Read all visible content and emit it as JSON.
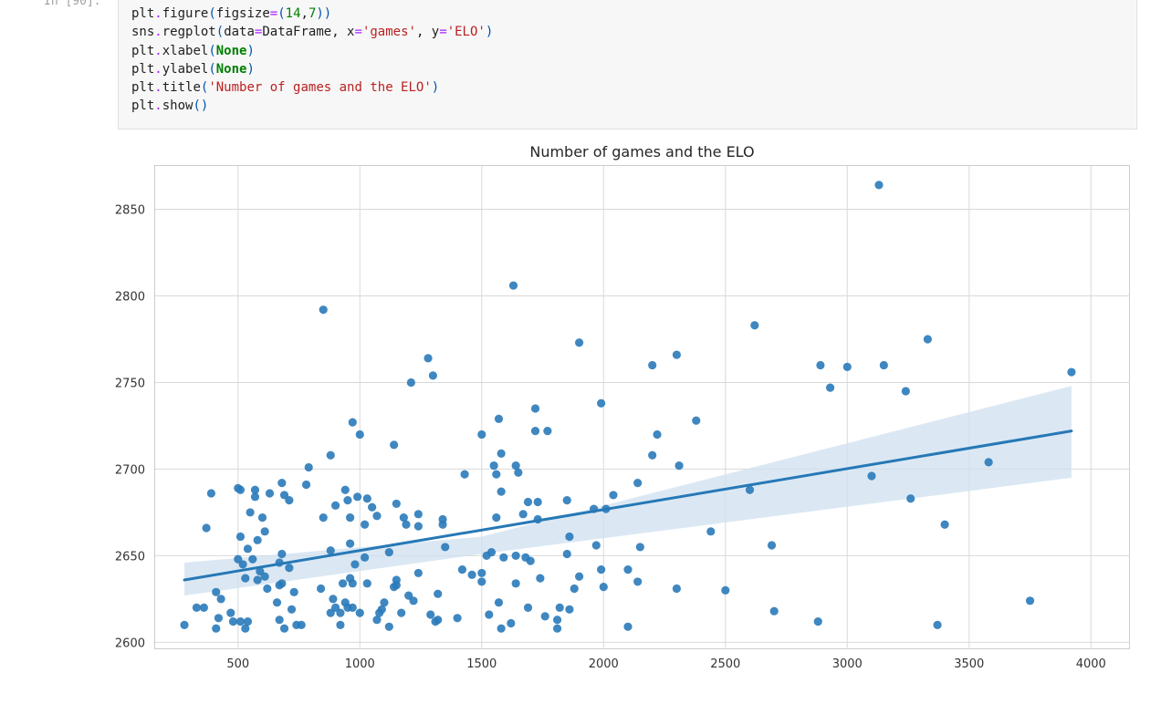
{
  "cell": {
    "prompt": "In [90]:",
    "lines": [
      "plt.figure(figsize=(14,7))",
      "sns.regplot(data=DataFrame, x='games', y='ELO')",
      "plt.xlabel(None)",
      "plt.ylabel(None)",
      "plt.title('Number of games and the ELO')",
      "plt.show()"
    ]
  },
  "colors": {
    "points": "#2a7ab9",
    "line": "#2678b6",
    "band": "#cfe0f0",
    "grid": "#d9d9d9",
    "cell_bg": "#f7f7f7"
  },
  "chart_data": {
    "type": "scatter",
    "title": "Number of games and the ELO",
    "xlabel": "",
    "ylabel": "",
    "xlim": [
      160,
      4160
    ],
    "ylim": [
      2596,
      2875
    ],
    "xticks": [
      500,
      1000,
      1500,
      2000,
      2500,
      3000,
      3500,
      4000
    ],
    "yticks": [
      2600,
      2650,
      2700,
      2750,
      2800,
      2850
    ],
    "grid": true,
    "regression": {
      "x_range": [
        280,
        3920
      ],
      "y_start": 2636,
      "y_end": 2722,
      "ci_start": [
        2627,
        2646
      ],
      "ci_end": [
        2695,
        2748
      ],
      "ci_at_mean": [
        2651,
        2661
      ],
      "x_mean": 1500
    },
    "points": [
      [
        3130,
        2864
      ],
      [
        1630,
        2806
      ],
      [
        850,
        2792
      ],
      [
        2620,
        2783
      ],
      [
        1900,
        2773
      ],
      [
        3330,
        2775
      ],
      [
        1280,
        2764
      ],
      [
        2300,
        2766
      ],
      [
        2200,
        2760
      ],
      [
        2890,
        2760
      ],
      [
        3000,
        2759
      ],
      [
        3150,
        2760
      ],
      [
        3920,
        2756
      ],
      [
        1300,
        2754
      ],
      [
        1210,
        2750
      ],
      [
        2930,
        2747
      ],
      [
        3240,
        2745
      ],
      [
        1990,
        2738
      ],
      [
        1720,
        2735
      ],
      [
        2380,
        2728
      ],
      [
        970,
        2727
      ],
      [
        1570,
        2729
      ],
      [
        1000,
        2720
      ],
      [
        1500,
        2720
      ],
      [
        1720,
        2722
      ],
      [
        1770,
        2722
      ],
      [
        2220,
        2720
      ],
      [
        1140,
        2714
      ],
      [
        880,
        2708
      ],
      [
        1580,
        2709
      ],
      [
        2200,
        2708
      ],
      [
        3580,
        2704
      ],
      [
        790,
        2701
      ],
      [
        1550,
        2702
      ],
      [
        1640,
        2702
      ],
      [
        2310,
        2702
      ],
      [
        1430,
        2697
      ],
      [
        1560,
        2697
      ],
      [
        1650,
        2698
      ],
      [
        3100,
        2696
      ],
      [
        680,
        2692
      ],
      [
        780,
        2691
      ],
      [
        2140,
        2692
      ],
      [
        500,
        2689
      ],
      [
        510,
        2688
      ],
      [
        570,
        2688
      ],
      [
        940,
        2688
      ],
      [
        1580,
        2687
      ],
      [
        2600,
        2688
      ],
      [
        390,
        2686
      ],
      [
        630,
        2686
      ],
      [
        690,
        2685
      ],
      [
        570,
        2684
      ],
      [
        710,
        2682
      ],
      [
        950,
        2682
      ],
      [
        990,
        2684
      ],
      [
        1030,
        2683
      ],
      [
        1850,
        2682
      ],
      [
        3260,
        2683
      ],
      [
        1690,
        2681
      ],
      [
        1730,
        2681
      ],
      [
        1150,
        2680
      ],
      [
        2040,
        2685
      ],
      [
        2010,
        2677
      ],
      [
        1050,
        2678
      ],
      [
        900,
        2679
      ],
      [
        1960,
        2677
      ],
      [
        550,
        2675
      ],
      [
        1670,
        2674
      ],
      [
        1240,
        2674
      ],
      [
        1180,
        2672
      ],
      [
        600,
        2672
      ],
      [
        850,
        2672
      ],
      [
        960,
        2672
      ],
      [
        1070,
        2673
      ],
      [
        1560,
        2672
      ],
      [
        1730,
        2671
      ],
      [
        1340,
        2671
      ],
      [
        1190,
        2668
      ],
      [
        1240,
        2667
      ],
      [
        1340,
        2668
      ],
      [
        1020,
        2668
      ],
      [
        370,
        2666
      ],
      [
        2440,
        2664
      ],
      [
        3400,
        2668
      ],
      [
        610,
        2664
      ],
      [
        510,
        2661
      ],
      [
        580,
        2659
      ],
      [
        1860,
        2661
      ],
      [
        960,
        2657
      ],
      [
        1970,
        2656
      ],
      [
        2150,
        2655
      ],
      [
        2690,
        2656
      ],
      [
        1350,
        2655
      ],
      [
        540,
        2654
      ],
      [
        880,
        2653
      ],
      [
        1120,
        2652
      ],
      [
        1520,
        2650
      ],
      [
        1540,
        2652
      ],
      [
        1590,
        2649
      ],
      [
        1640,
        2650
      ],
      [
        1680,
        2649
      ],
      [
        1700,
        2647
      ],
      [
        1850,
        2651
      ],
      [
        500,
        2648
      ],
      [
        560,
        2648
      ],
      [
        680,
        2651
      ],
      [
        1020,
        2649
      ],
      [
        520,
        2645
      ],
      [
        980,
        2645
      ],
      [
        670,
        2646
      ],
      [
        710,
        2643
      ],
      [
        1420,
        2642
      ],
      [
        1500,
        2640
      ],
      [
        1460,
        2639
      ],
      [
        2100,
        2642
      ],
      [
        1900,
        2638
      ],
      [
        1240,
        2640
      ],
      [
        590,
        2641
      ],
      [
        610,
        2638
      ],
      [
        530,
        2637
      ],
      [
        580,
        2636
      ],
      [
        960,
        2637
      ],
      [
        1150,
        2636
      ],
      [
        1500,
        2635
      ],
      [
        1640,
        2634
      ],
      [
        1740,
        2637
      ],
      [
        2140,
        2635
      ],
      [
        2000,
        2632
      ],
      [
        930,
        2634
      ],
      [
        970,
        2634
      ],
      [
        1030,
        2634
      ],
      [
        670,
        2633
      ],
      [
        680,
        2634
      ],
      [
        1140,
        2632
      ],
      [
        1150,
        2633
      ],
      [
        1880,
        2631
      ],
      [
        1990,
        2642
      ],
      [
        2300,
        2631
      ],
      [
        2500,
        2630
      ],
      [
        410,
        2629
      ],
      [
        620,
        2631
      ],
      [
        840,
        2631
      ],
      [
        730,
        2629
      ],
      [
        1320,
        2628
      ],
      [
        1200,
        2627
      ],
      [
        1220,
        2624
      ],
      [
        430,
        2625
      ],
      [
        890,
        2625
      ],
      [
        940,
        2623
      ],
      [
        660,
        2623
      ],
      [
        1100,
        2623
      ],
      [
        330,
        2620
      ],
      [
        360,
        2620
      ],
      [
        720,
        2619
      ],
      [
        900,
        2620
      ],
      [
        950,
        2620
      ],
      [
        970,
        2620
      ],
      [
        1690,
        2620
      ],
      [
        1820,
        2620
      ],
      [
        1860,
        2619
      ],
      [
        470,
        2617
      ],
      [
        880,
        2617
      ],
      [
        920,
        2617
      ],
      [
        1000,
        2617
      ],
      [
        1080,
        2617
      ],
      [
        1090,
        2619
      ],
      [
        1170,
        2617
      ],
      [
        1290,
        2616
      ],
      [
        1530,
        2616
      ],
      [
        1760,
        2615
      ],
      [
        420,
        2614
      ],
      [
        670,
        2613
      ],
      [
        1070,
        2613
      ],
      [
        1310,
        2612
      ],
      [
        1320,
        2613
      ],
      [
        1400,
        2614
      ],
      [
        2700,
        2618
      ],
      [
        2880,
        2612
      ],
      [
        280,
        2610
      ],
      [
        480,
        2612
      ],
      [
        510,
        2612
      ],
      [
        540,
        2612
      ],
      [
        740,
        2610
      ],
      [
        760,
        2610
      ],
      [
        920,
        2610
      ],
      [
        1120,
        2609
      ],
      [
        1620,
        2611
      ],
      [
        1810,
        2613
      ],
      [
        2100,
        2609
      ],
      [
        3370,
        2610
      ],
      [
        3750,
        2624
      ],
      [
        1570,
        2623
      ],
      [
        410,
        2608
      ],
      [
        530,
        2608
      ],
      [
        690,
        2608
      ],
      [
        1580,
        2608
      ],
      [
        1810,
        2608
      ]
    ]
  }
}
